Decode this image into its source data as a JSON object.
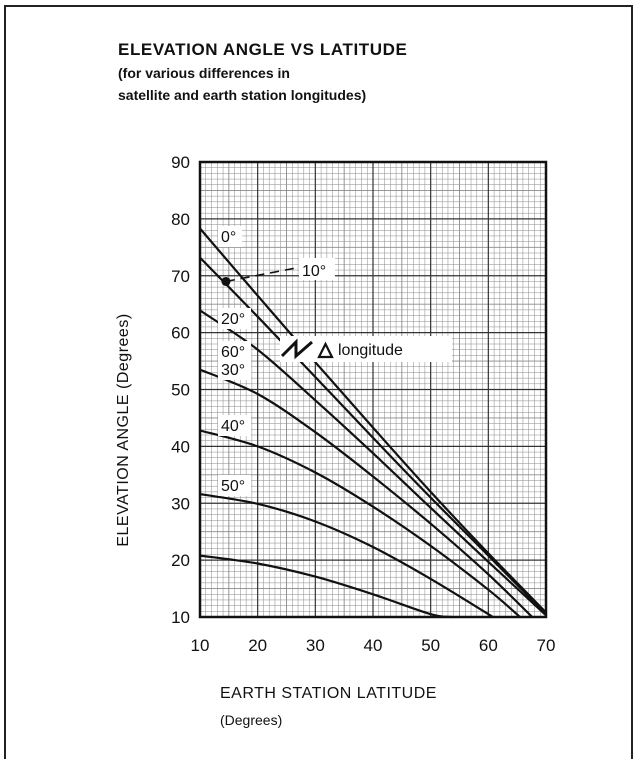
{
  "chart_data": {
    "type": "line",
    "title": "ELEVATION ANGLE VS LATITUDE",
    "subtitle_lines": [
      "(for various differences in",
      "satellite and earth station longitudes)"
    ],
    "xlabel": "EARTH STATION LATITUDE",
    "xlabel_unit": "(Degrees)",
    "ylabel": "ELEVATION ANGLE (Degrees)",
    "xlim": [
      10,
      70
    ],
    "ylim": [
      10,
      90
    ],
    "x_ticks": [
      "10",
      "20",
      "30",
      "40",
      "50",
      "60",
      "70"
    ],
    "y_ticks": [
      "10",
      "20",
      "30",
      "40",
      "50",
      "60",
      "70",
      "80",
      "90"
    ],
    "grid": true,
    "legend_note": "longitude",
    "legend_symbol": "Δ",
    "series": [
      {
        "name": "0°",
        "x": [
          10,
          20,
          30,
          40,
          50,
          60,
          70
        ],
        "y": [
          78.3,
          66.5,
          54.8,
          43.3,
          32.0,
          21.2,
          10.8
        ]
      },
      {
        "name": "10°",
        "x": [
          10,
          20,
          30,
          40,
          50,
          60,
          70
        ],
        "y": [
          73.2,
          62.8,
          52.2,
          41.5,
          31.0,
          20.8,
          10.5
        ]
      },
      {
        "name": "20°",
        "x": [
          10,
          20,
          30,
          40,
          50,
          60,
          70
        ],
        "y": [
          63.9,
          57.0,
          48.1,
          38.8,
          29.2,
          19.7,
          10.3
        ]
      },
      {
        "name": "30°",
        "x": [
          10,
          20,
          30,
          40,
          50,
          60,
          67.6
        ],
        "y": [
          53.5,
          49.2,
          42.5,
          34.7,
          26.4,
          17.5,
          10.0
        ]
      },
      {
        "name": "40°",
        "x": [
          10,
          20,
          30,
          40,
          50,
          60,
          65.5
        ],
        "y": [
          42.8,
          40.0,
          35.4,
          29.4,
          22.5,
          14.8,
          10.0
        ]
      },
      {
        "name": "50°",
        "x": [
          10,
          20,
          30,
          40,
          50,
          60.8
        ],
        "y": [
          31.6,
          29.9,
          26.8,
          22.3,
          16.7,
          10.0
        ]
      },
      {
        "name": "60°",
        "x": [
          10,
          20,
          30,
          40,
          50,
          53.7
        ],
        "y": [
          20.8,
          19.4,
          17.1,
          14.0,
          10.5,
          10.0
        ]
      }
    ],
    "annotation": {
      "label": "10°",
      "target_x": 14.5,
      "target_y": 69
    }
  }
}
